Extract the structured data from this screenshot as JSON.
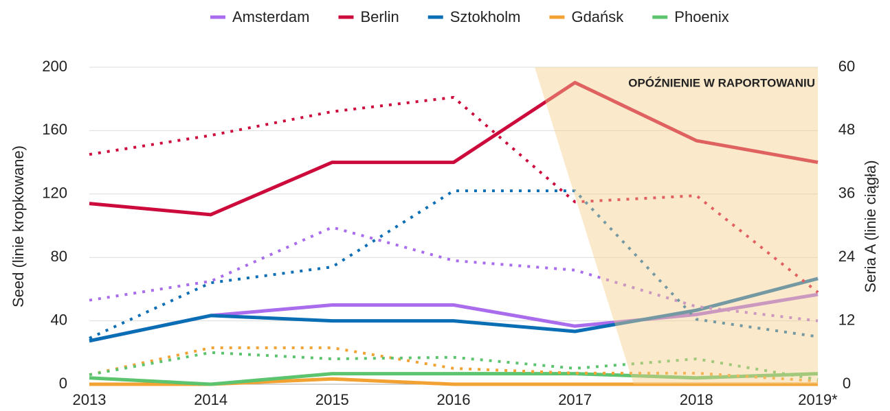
{
  "chart_data": {
    "type": "line",
    "annotation": "OPÓŹNIENIE W RAPORTOWANIU",
    "y_label": "Seed (linie kropkowane)",
    "y2_label": "Seria A (linie ciągła)",
    "categories": [
      "2013",
      "2014",
      "2015",
      "2016",
      "2017",
      "2018",
      "2019*"
    ],
    "ylim": [
      0,
      200
    ],
    "yticks": [
      0,
      40,
      80,
      120,
      160,
      200
    ],
    "y2lim": [
      0,
      60
    ],
    "y2ticks": [
      0,
      12,
      24,
      36,
      48,
      60
    ],
    "grid": true,
    "legend": "top",
    "series": [
      {
        "name": "Amsterdam",
        "color": "#a86cec",
        "axis": "y2",
        "style": "solid",
        "values": [
          8.2,
          13,
          15,
          15,
          11,
          13.2,
          17
        ]
      },
      {
        "name": "Berlin",
        "color": "#cc0a3c",
        "axis": "y2",
        "style": "solid",
        "values": [
          34.2,
          32.1,
          42,
          42,
          57.1,
          46.1,
          42
        ]
      },
      {
        "name": "Sztokholm",
        "color": "#0a6eb4",
        "axis": "y2",
        "style": "solid",
        "values": [
          8.2,
          13,
          12,
          12,
          10,
          14,
          20
        ]
      },
      {
        "name": "Gdańsk",
        "color": "#f2a232",
        "axis": "y2",
        "style": "solid",
        "values": [
          0,
          0,
          1,
          0,
          0,
          0,
          0
        ]
      },
      {
        "name": "Phoenix",
        "color": "#5cc46e",
        "axis": "y2",
        "style": "solid",
        "values": [
          1.2,
          0,
          2,
          2,
          2,
          1.2,
          2
        ]
      },
      {
        "name": "Amsterdam",
        "color": "#a86cec",
        "axis": "y",
        "style": "dotted",
        "values": [
          53,
          65,
          99,
          78,
          72,
          49,
          40
        ]
      },
      {
        "name": "Berlin",
        "color": "#cc0a3c",
        "axis": "y",
        "style": "dotted",
        "values": [
          145,
          157,
          172,
          181,
          115,
          119,
          58
        ]
      },
      {
        "name": "Sztokholm",
        "color": "#0a6eb4",
        "axis": "y",
        "style": "dotted",
        "values": [
          29,
          64,
          74,
          122,
          122,
          41,
          30
        ]
      },
      {
        "name": "Gdańsk",
        "color": "#f2a232",
        "axis": "y",
        "style": "dotted",
        "values": [
          6,
          23,
          23,
          10,
          7,
          7,
          2
        ]
      },
      {
        "name": "Phoenix",
        "color": "#5cc46e",
        "axis": "y",
        "style": "dotted",
        "values": [
          6,
          20,
          16,
          17,
          10,
          16,
          3
        ]
      }
    ]
  }
}
